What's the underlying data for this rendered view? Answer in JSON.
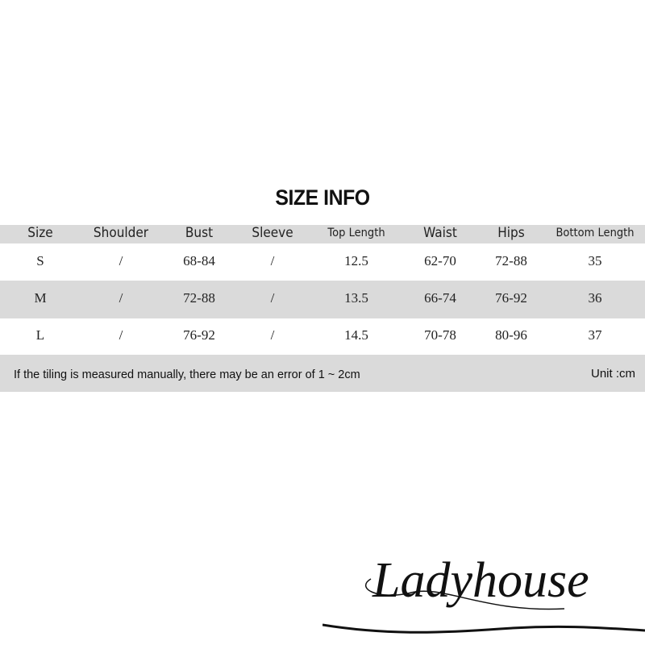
{
  "title": "SIZE INFO",
  "table": {
    "headers": [
      "Size",
      "Shoulder",
      "Bust",
      "Sleeve",
      "Top Length",
      "Waist",
      "Hips",
      "Bottom Length"
    ],
    "rows": [
      [
        "S",
        "/",
        "68-84",
        "/",
        "12.5",
        "62-70",
        "72-88",
        "35"
      ],
      [
        "M",
        "/",
        "72-88",
        "/",
        "13.5",
        "66-74",
        "76-92",
        "36"
      ],
      [
        "L",
        "/",
        "76-92",
        "/",
        "14.5",
        "70-78",
        "80-96",
        "37"
      ]
    ]
  },
  "footer": {
    "note": "If the tiling is measured manually, there may be an error of 1 ~ 2cm",
    "unit": "Unit :cm"
  },
  "logo": {
    "text": "Ladyhouse"
  },
  "colors": {
    "band": "#dadada",
    "text": "#111111"
  }
}
